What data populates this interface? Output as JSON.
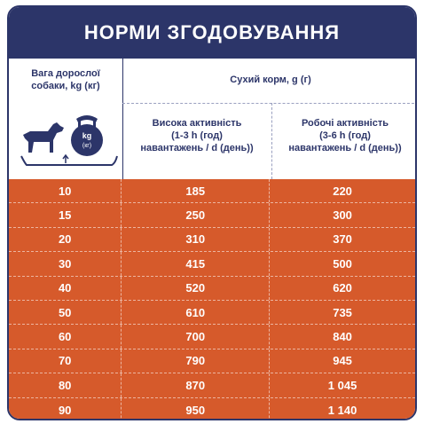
{
  "title": "НОРМИ ЗГОДОВУВАННЯ",
  "header": {
    "weight_label_line1": "Вага дорослої",
    "weight_label_line2": "собаки, kg (кг)",
    "dry_food_label": "Сухий корм, g (г)",
    "col_high": {
      "line1": "Висока активність",
      "line2": "(1-3 h (год)",
      "line3": "навантажень / d (день))"
    },
    "col_work": {
      "line1": "Робочі активність",
      "line2": "(3-6 h (год)",
      "line3": "навантажень / d (день))"
    },
    "kettlebell_text1": "kg",
    "kettlebell_text2": "(кг)"
  },
  "rows": [
    {
      "weight": "10",
      "high": "185",
      "work": "220"
    },
    {
      "weight": "15",
      "high": "250",
      "work": "300"
    },
    {
      "weight": "20",
      "high": "310",
      "work": "370"
    },
    {
      "weight": "30",
      "high": "415",
      "work": "500"
    },
    {
      "weight": "40",
      "high": "520",
      "work": "620"
    },
    {
      "weight": "50",
      "high": "610",
      "work": "735"
    },
    {
      "weight": "60",
      "high": "700",
      "work": "840"
    },
    {
      "weight": "70",
      "high": "790",
      "work": "945"
    },
    {
      "weight": "80",
      "high": "870",
      "work": "1 045"
    },
    {
      "weight": "90",
      "high": "950",
      "work": "1 140"
    }
  ],
  "colors": {
    "navy": "#2c3569",
    "orange": "#d65a2b",
    "white": "#ffffff"
  },
  "icons": [
    "dog-icon",
    "kettlebell-icon",
    "scale-platform-icon"
  ]
}
